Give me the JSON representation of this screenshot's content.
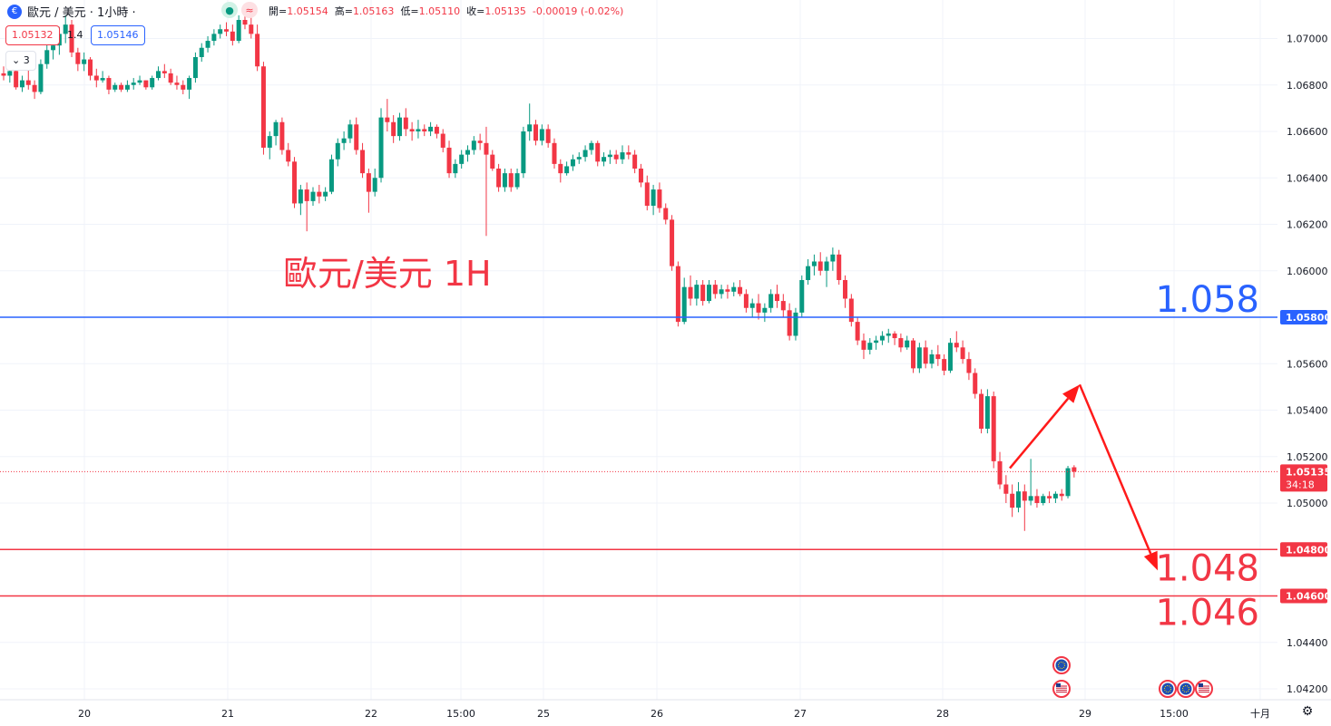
{
  "header": {
    "symbol": "歐元 / 美元 · 1小時 ·",
    "ohlc": {
      "open_label": "開=",
      "open": "1.05154",
      "high_label": "高=",
      "high": "1.05163",
      "low_label": "低=",
      "low": "1.05110",
      "close_label": "收=",
      "close": "1.05135",
      "change": "-0.00019 (-0.02%)"
    },
    "market_status_icon": "market-open-icon",
    "sell_price": "1.05132",
    "spread": "1.4",
    "buy_price": "1.05146",
    "collapse_label": "3"
  },
  "colors": {
    "up": "#089981",
    "down": "#f23645",
    "blue_line": "#2962ff",
    "red_line": "#f23645",
    "grid": "#f0f3fa",
    "axis_text": "#131722"
  },
  "chart_data": {
    "type": "candlestick",
    "title": "歐元/美元 1H",
    "xlabel": "",
    "ylabel": "",
    "ylim": [
      1.041,
      1.0712
    ],
    "grid": true,
    "y_ticks": [
      "1.07000",
      "1.06800",
      "1.06600",
      "1.06400",
      "1.06200",
      "1.06000",
      "1.05600",
      "1.05400",
      "1.05200",
      "1.05000",
      "1.04400",
      "1.04200"
    ],
    "x_ticks": [
      "20",
      "21",
      "22",
      "15:00",
      "25",
      "26",
      "27",
      "28",
      "29",
      "15:00",
      "十月"
    ],
    "current_price": {
      "value": 1.05135,
      "label": "1.05135",
      "countdown": "34:18"
    },
    "lines": [
      {
        "name": "1.058",
        "value": 1.058,
        "axis_label": "1.05800",
        "color": "#2962ff"
      },
      {
        "name": "1.048",
        "value": 1.048,
        "axis_label": "1.04800",
        "color": "#f23645"
      },
      {
        "name": "1.046",
        "value": 1.046,
        "axis_label": "1.04600",
        "color": "#f23645"
      }
    ],
    "annotations": [
      "1.058",
      "1.048",
      "1.046"
    ],
    "projection": [
      {
        "step": "current",
        "price": 1.0515
      },
      {
        "step": "peak",
        "price": 1.0551
      },
      {
        "step": "target",
        "price": 1.0471
      }
    ],
    "candles": [
      [
        1.0685,
        1.0688,
        1.0682,
        1.0684
      ],
      [
        1.0684,
        1.0688,
        1.0681,
        1.0686
      ],
      [
        1.0686,
        1.0687,
        1.0678,
        1.0679
      ],
      [
        1.0679,
        1.0684,
        1.0677,
        1.0682
      ],
      [
        1.0682,
        1.0688,
        1.0678,
        1.068
      ],
      [
        1.068,
        1.0682,
        1.0674,
        1.0677
      ],
      [
        1.0677,
        1.0691,
        1.0676,
        1.0689
      ],
      [
        1.0689,
        1.0698,
        1.0687,
        1.0695
      ],
      [
        1.0695,
        1.0701,
        1.0691,
        1.0697
      ],
      [
        1.0697,
        1.0705,
        1.0693,
        1.0702
      ],
      [
        1.0702,
        1.071,
        1.0698,
        1.0706
      ],
      [
        1.0706,
        1.0708,
        1.0692,
        1.0694
      ],
      [
        1.0694,
        1.0696,
        1.0686,
        1.0689
      ],
      [
        1.0689,
        1.0694,
        1.0686,
        1.0691
      ],
      [
        1.0691,
        1.0692,
        1.0682,
        1.0684
      ],
      [
        1.0684,
        1.0687,
        1.0679,
        1.0682
      ],
      [
        1.0682,
        1.0686,
        1.0681,
        1.0683
      ],
      [
        1.0683,
        1.0684,
        1.0676,
        1.0678
      ],
      [
        1.0678,
        1.0681,
        1.0677,
        1.068
      ],
      [
        1.068,
        1.0681,
        1.0677,
        1.0678
      ],
      [
        1.0678,
        1.0682,
        1.0677,
        1.068
      ],
      [
        1.068,
        1.0683,
        1.0678,
        1.0681
      ],
      [
        1.0681,
        1.0684,
        1.068,
        1.0682
      ],
      [
        1.0682,
        1.0682,
        1.0678,
        1.0679
      ],
      [
        1.0679,
        1.0684,
        1.0678,
        1.0683
      ],
      [
        1.0683,
        1.0688,
        1.0682,
        1.0686
      ],
      [
        1.0686,
        1.0689,
        1.0683,
        1.0685
      ],
      [
        1.0685,
        1.0687,
        1.068,
        1.0681
      ],
      [
        1.0681,
        1.0684,
        1.0678,
        1.068
      ],
      [
        1.068,
        1.0682,
        1.0676,
        1.0678
      ],
      [
        1.0678,
        1.0684,
        1.0674,
        1.0683
      ],
      [
        1.0683,
        1.0694,
        1.0681,
        1.0692
      ],
      [
        1.0692,
        1.0698,
        1.069,
        1.0696
      ],
      [
        1.0696,
        1.0701,
        1.0694,
        1.0699
      ],
      [
        1.0699,
        1.0704,
        1.0697,
        1.0702
      ],
      [
        1.0702,
        1.0706,
        1.07,
        1.0704
      ],
      [
        1.0704,
        1.0707,
        1.0701,
        1.0703
      ],
      [
        1.0703,
        1.0706,
        1.0697,
        1.0699
      ],
      [
        1.0699,
        1.071,
        1.0698,
        1.0708
      ],
      [
        1.0708,
        1.0712,
        1.0704,
        1.0706
      ],
      [
        1.0706,
        1.0709,
        1.07,
        1.0702
      ],
      [
        1.0702,
        1.0706,
        1.0686,
        1.0688
      ],
      [
        1.0688,
        1.069,
        1.065,
        1.0653
      ],
      [
        1.0653,
        1.066,
        1.0648,
        1.0658
      ],
      [
        1.0658,
        1.0665,
        1.0654,
        1.0664
      ],
      [
        1.0664,
        1.0666,
        1.065,
        1.0652
      ],
      [
        1.0652,
        1.0655,
        1.0645,
        1.0647
      ],
      [
        1.0647,
        1.0649,
        1.0627,
        1.0629
      ],
      [
        1.0629,
        1.0637,
        1.0624,
        1.0635
      ],
      [
        1.0635,
        1.0638,
        1.0617,
        1.063
      ],
      [
        1.063,
        1.0636,
        1.0628,
        1.0634
      ],
      [
        1.0634,
        1.0637,
        1.0629,
        1.0632
      ],
      [
        1.0632,
        1.0636,
        1.063,
        1.0634
      ],
      [
        1.0634,
        1.065,
        1.0633,
        1.0648
      ],
      [
        1.0648,
        1.0657,
        1.0645,
        1.0655
      ],
      [
        1.0655,
        1.066,
        1.0652,
        1.0657
      ],
      [
        1.0657,
        1.0665,
        1.0655,
        1.0663
      ],
      [
        1.0663,
        1.0666,
        1.065,
        1.0652
      ],
      [
        1.0652,
        1.0655,
        1.064,
        1.0642
      ],
      [
        1.0642,
        1.0644,
        1.0625,
        1.0634
      ],
      [
        1.0634,
        1.0644,
        1.0632,
        1.064
      ],
      [
        1.064,
        1.067,
        1.0638,
        1.0666
      ],
      [
        1.0666,
        1.0674,
        1.066,
        1.0664
      ],
      [
        1.0664,
        1.0667,
        1.0655,
        1.0658
      ],
      [
        1.0658,
        1.0668,
        1.0656,
        1.0666
      ],
      [
        1.0666,
        1.067,
        1.0658,
        1.0661
      ],
      [
        1.0661,
        1.0664,
        1.0656,
        1.066
      ],
      [
        1.066,
        1.0665,
        1.0657,
        1.0661
      ],
      [
        1.0661,
        1.0663,
        1.0658,
        1.066
      ],
      [
        1.066,
        1.0664,
        1.0658,
        1.0662
      ],
      [
        1.0662,
        1.0663,
        1.0657,
        1.0659
      ],
      [
        1.0659,
        1.0661,
        1.0651,
        1.0653
      ],
      [
        1.0653,
        1.0656,
        1.064,
        1.0642
      ],
      [
        1.0642,
        1.0648,
        1.064,
        1.0646
      ],
      [
        1.0646,
        1.0652,
        1.0644,
        1.065
      ],
      [
        1.065,
        1.0654,
        1.0647,
        1.0652
      ],
      [
        1.0652,
        1.0658,
        1.065,
        1.0656
      ],
      [
        1.0656,
        1.0659,
        1.0652,
        1.0655
      ],
      [
        1.0655,
        1.0662,
        1.0615,
        1.065
      ],
      [
        1.065,
        1.0652,
        1.0643,
        1.0644
      ],
      [
        1.0644,
        1.0646,
        1.0634,
        1.0636
      ],
      [
        1.0636,
        1.0644,
        1.0634,
        1.0642
      ],
      [
        1.0642,
        1.0644,
        1.0634,
        1.0636
      ],
      [
        1.0636,
        1.0644,
        1.0635,
        1.0642
      ],
      [
        1.0642,
        1.0662,
        1.064,
        1.066
      ],
      [
        1.066,
        1.0672,
        1.0656,
        1.0663
      ],
      [
        1.0663,
        1.0665,
        1.0654,
        1.0656
      ],
      [
        1.0656,
        1.0663,
        1.0654,
        1.0661
      ],
      [
        1.0661,
        1.0663,
        1.0653,
        1.0655
      ],
      [
        1.0655,
        1.0657,
        1.0644,
        1.0646
      ],
      [
        1.0646,
        1.0648,
        1.0638,
        1.0642
      ],
      [
        1.0642,
        1.0647,
        1.0641,
        1.0645
      ],
      [
        1.0645,
        1.065,
        1.0643,
        1.0648
      ],
      [
        1.0648,
        1.0651,
        1.0646,
        1.0649
      ],
      [
        1.0649,
        1.0654,
        1.0647,
        1.0652
      ],
      [
        1.0652,
        1.0656,
        1.065,
        1.0655
      ],
      [
        1.0655,
        1.0656,
        1.0645,
        1.0647
      ],
      [
        1.0647,
        1.0651,
        1.0645,
        1.0649
      ],
      [
        1.0649,
        1.0652,
        1.0646,
        1.065
      ],
      [
        1.065,
        1.0652,
        1.0646,
        1.0648
      ],
      [
        1.0648,
        1.0654,
        1.0646,
        1.0651
      ],
      [
        1.0651,
        1.0654,
        1.0648,
        1.065
      ],
      [
        1.065,
        1.0652,
        1.0642,
        1.0644
      ],
      [
        1.0644,
        1.0646,
        1.0636,
        1.0638
      ],
      [
        1.0638,
        1.0641,
        1.0626,
        1.0628
      ],
      [
        1.0628,
        1.0637,
        1.0624,
        1.0635
      ],
      [
        1.0635,
        1.0638,
        1.0625,
        1.0627
      ],
      [
        1.0627,
        1.0629,
        1.062,
        1.0622
      ],
      [
        1.0622,
        1.0624,
        1.06,
        1.0602
      ],
      [
        1.0602,
        1.0604,
        1.0576,
        1.0578
      ],
      [
        1.0578,
        1.0597,
        1.0577,
        1.0593
      ],
      [
        1.0593,
        1.0598,
        1.0585,
        1.0588
      ],
      [
        1.0588,
        1.0596,
        1.0585,
        1.0594
      ],
      [
        1.0594,
        1.0596,
        1.0585,
        1.0587
      ],
      [
        1.0587,
        1.0596,
        1.0586,
        1.0594
      ],
      [
        1.0594,
        1.0596,
        1.0588,
        1.059
      ],
      [
        1.059,
        1.0594,
        1.0588,
        1.0592
      ],
      [
        1.0592,
        1.0594,
        1.0588,
        1.0591
      ],
      [
        1.0591,
        1.0595,
        1.0589,
        1.0593
      ],
      [
        1.0593,
        1.0596,
        1.0589,
        1.059
      ],
      [
        1.059,
        1.0592,
        1.0582,
        1.0584
      ],
      [
        1.0584,
        1.0588,
        1.058,
        1.0586
      ],
      [
        1.0586,
        1.059,
        1.0579,
        1.0582
      ],
      [
        1.0582,
        1.0586,
        1.0578,
        1.0584
      ],
      [
        1.0584,
        1.0592,
        1.0582,
        1.059
      ],
      [
        1.059,
        1.0594,
        1.0584,
        1.0587
      ],
      [
        1.0587,
        1.059,
        1.058,
        1.0583
      ],
      [
        1.0583,
        1.0586,
        1.057,
        1.0572
      ],
      [
        1.0572,
        1.0584,
        1.057,
        1.0582
      ],
      [
        1.0582,
        1.0598,
        1.058,
        1.0596
      ],
      [
        1.0596,
        1.0605,
        1.0594,
        1.0602
      ],
      [
        1.0602,
        1.0607,
        1.0598,
        1.0604
      ],
      [
        1.0604,
        1.0608,
        1.0598,
        1.06
      ],
      [
        1.06,
        1.0606,
        1.0593,
        1.0604
      ],
      [
        1.0604,
        1.061,
        1.06,
        1.0607
      ],
      [
        1.0607,
        1.0609,
        1.0594,
        1.0596
      ],
      [
        1.0596,
        1.0598,
        1.0584,
        1.0588
      ],
      [
        1.0588,
        1.059,
        1.0576,
        1.0578
      ],
      [
        1.0578,
        1.058,
        1.0568,
        1.057
      ],
      [
        1.057,
        1.0573,
        1.0562,
        1.0566
      ],
      [
        1.0566,
        1.0571,
        1.0564,
        1.0569
      ],
      [
        1.0569,
        1.0572,
        1.0566,
        1.057
      ],
      [
        1.057,
        1.0574,
        1.0568,
        1.0572
      ],
      [
        1.0572,
        1.0575,
        1.0569,
        1.0573
      ],
      [
        1.0573,
        1.0574,
        1.0568,
        1.0571
      ],
      [
        1.0571,
        1.0573,
        1.0565,
        1.0567
      ],
      [
        1.0567,
        1.0572,
        1.0566,
        1.057
      ],
      [
        1.057,
        1.0571,
        1.0556,
        1.0558
      ],
      [
        1.0558,
        1.0569,
        1.0556,
        1.0567
      ],
      [
        1.0567,
        1.057,
        1.0558,
        1.056
      ],
      [
        1.056,
        1.0566,
        1.0558,
        1.0564
      ],
      [
        1.0564,
        1.0568,
        1.0559,
        1.0562
      ],
      [
        1.0562,
        1.0564,
        1.0555,
        1.0557
      ],
      [
        1.0557,
        1.0571,
        1.0556,
        1.0569
      ],
      [
        1.0569,
        1.0574,
        1.0565,
        1.0567
      ],
      [
        1.0567,
        1.057,
        1.056,
        1.0562
      ],
      [
        1.0562,
        1.0565,
        1.0553,
        1.0556
      ],
      [
        1.0556,
        1.0558,
        1.0545,
        1.0547
      ],
      [
        1.0547,
        1.0549,
        1.053,
        1.0532
      ],
      [
        1.0532,
        1.0549,
        1.053,
        1.0546
      ],
      [
        1.0546,
        1.0548,
        1.0515,
        1.0518
      ],
      [
        1.0518,
        1.0522,
        1.0506,
        1.0508
      ],
      [
        1.0508,
        1.0512,
        1.05,
        1.0504
      ],
      [
        1.0504,
        1.0508,
        1.0494,
        1.0498
      ],
      [
        1.0498,
        1.0509,
        1.0496,
        1.0505
      ],
      [
        1.0505,
        1.0508,
        1.0488,
        1.0501
      ],
      [
        1.0501,
        1.0519,
        1.0499,
        1.0503
      ],
      [
        1.0503,
        1.0506,
        1.0498,
        1.05
      ],
      [
        1.05,
        1.0504,
        1.0499,
        1.0503
      ],
      [
        1.0503,
        1.0505,
        1.05,
        1.0502
      ],
      [
        1.0502,
        1.0505,
        1.05,
        1.0504
      ],
      [
        1.0504,
        1.0506,
        1.0501,
        1.0503
      ],
      [
        1.0503,
        1.0516,
        1.0502,
        1.0515
      ],
      [
        1.05154,
        1.05163,
        1.0511,
        1.05135
      ]
    ]
  }
}
